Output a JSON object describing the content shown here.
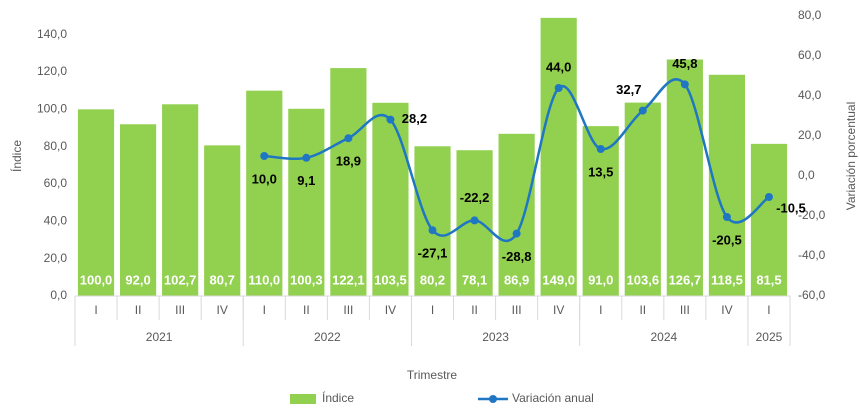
{
  "chart_data": {
    "type": "bar_line",
    "y_label": "Índice",
    "y2_label": "Variación porcentual",
    "x_label": "Trimestre",
    "categories": [
      "I",
      "II",
      "III",
      "IV",
      "I",
      "II",
      "III",
      "IV",
      "I",
      "II",
      "III",
      "IV",
      "I",
      "II",
      "III",
      "IV",
      "I"
    ],
    "groups": [
      "2021",
      "2022",
      "2023",
      "2024",
      "2025"
    ],
    "series": [
      {
        "name": "Índice",
        "type": "bar",
        "color": "#92d050",
        "values": [
          100.0,
          92.0,
          102.7,
          80.7,
          110.0,
          100.3,
          122.1,
          103.5,
          80.2,
          78.1,
          86.9,
          149.0,
          91.0,
          103.6,
          126.7,
          118.5,
          81.5
        ],
        "value_labels": [
          "100,0",
          "92,0",
          "102,7",
          "80,7",
          "110,0",
          "100,3",
          "122,1",
          "103,5",
          "80,2",
          "78,1",
          "86,9",
          "149,0",
          "91,0",
          "103,6",
          "126,7",
          "118,5",
          "81,5"
        ]
      },
      {
        "name": "Variación anual",
        "type": "line",
        "axis": "y2",
        "color": "#1f77c4",
        "values": [
          null,
          null,
          null,
          null,
          10.0,
          9.1,
          18.9,
          28.2,
          -27.1,
          -22.2,
          -28.8,
          44.0,
          13.5,
          32.7,
          45.8,
          -20.5,
          -10.5
        ],
        "value_labels": [
          null,
          null,
          null,
          null,
          "10,0",
          "9,1",
          "18,9",
          "28,2",
          "-27,1",
          "-22,2",
          "-28,8",
          "44,0",
          "13,5",
          "32,7",
          "45,8",
          "-20,5",
          "-10,5"
        ]
      }
    ],
    "ylim": [
      0,
      150
    ],
    "yticks": [
      {
        "value": 0,
        "label": "0,0"
      },
      {
        "value": 20,
        "label": "20,0"
      },
      {
        "value": 40,
        "label": "40,0"
      },
      {
        "value": 60,
        "label": "60,0"
      },
      {
        "value": 80,
        "label": "80,0"
      },
      {
        "value": 100,
        "label": "100,0"
      },
      {
        "value": 120,
        "label": "120,0"
      },
      {
        "value": 140,
        "label": "140,0"
      }
    ],
    "y2lim": [
      -60,
      80
    ],
    "y2ticks": [
      {
        "value": -60,
        "label": "-60,0"
      },
      {
        "value": -40,
        "label": "-40,0"
      },
      {
        "value": -20,
        "label": "-20,0"
      },
      {
        "value": 0,
        "label": "0,0"
      },
      {
        "value": 20,
        "label": "20,0"
      },
      {
        "value": 40,
        "label": "40,0"
      },
      {
        "value": 60,
        "label": "60,0"
      },
      {
        "value": 80,
        "label": "80,0"
      }
    ],
    "legend": "bottom"
  }
}
